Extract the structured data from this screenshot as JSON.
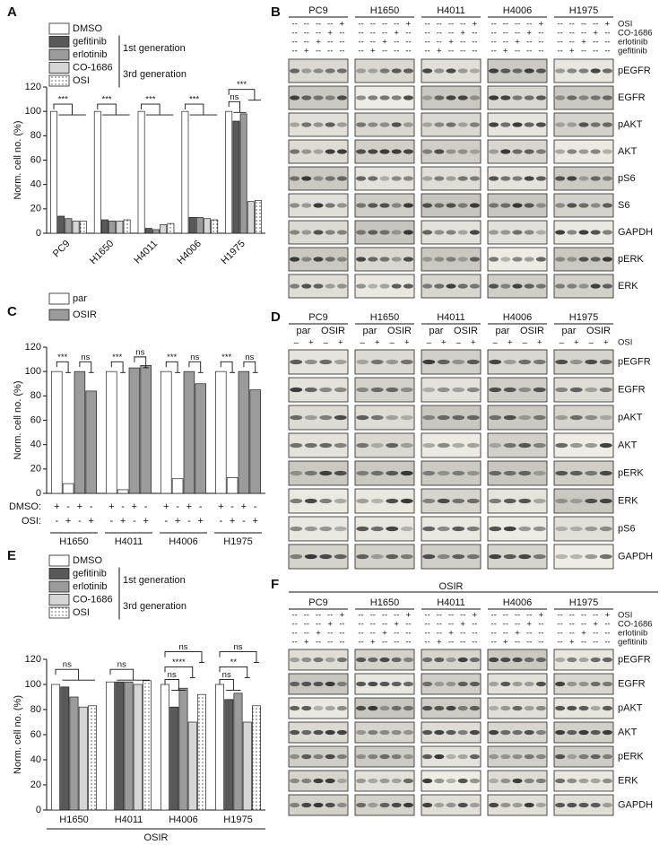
{
  "chart_data": [
    {
      "type": "bar",
      "label": "A",
      "y_label": "Norm. cell no. (%)",
      "categories": [
        "PC9",
        "H1650",
        "H4011",
        "H4006",
        "H1975"
      ],
      "rotated_labels": true,
      "series": [
        {
          "name": "DMSO",
          "color": "#ffffff",
          "values": [
            100,
            100,
            100,
            100,
            100
          ]
        },
        {
          "name": "gefitinib",
          "color": "#595959",
          "values": [
            14,
            11,
            4,
            13,
            92
          ]
        },
        {
          "name": "erlotinib",
          "color": "#9b9b9b",
          "values": [
            12,
            10,
            3,
            13,
            98
          ]
        },
        {
          "name": "CO-1686",
          "color": "#d6d6d6",
          "values": [
            10,
            10,
            7,
            12,
            26
          ]
        },
        {
          "name": "OSI",
          "color": "#ffffff",
          "pattern": "dots",
          "values": [
            10,
            11,
            8,
            11,
            27
          ]
        }
      ],
      "legend_groups": [
        "1st generation",
        "3rd generation"
      ],
      "annotations": [
        "***",
        "***",
        "***",
        "***",
        "ns",
        "***"
      ],
      "ylim": [
        0,
        120
      ],
      "yticks": [
        0,
        20,
        40,
        60,
        80,
        100,
        120
      ]
    },
    {
      "type": "bar",
      "label": "C",
      "y_label": "Norm. cell no. (%)",
      "categories": [
        "H1650",
        "H4011",
        "H4006",
        "H1975"
      ],
      "series": [
        {
          "name": "par",
          "color": "#ffffff",
          "values": [
            [
              100,
              8
            ],
            [
              100,
              3
            ],
            [
              100,
              12
            ],
            [
              100,
              13
            ]
          ]
        },
        {
          "name": "OSIR",
          "color": "#9b9b9b",
          "values": [
            [
              100,
              84
            ],
            [
              103,
              105
            ],
            [
              100,
              90
            ],
            [
              100,
              85
            ]
          ]
        }
      ],
      "conditions": [
        {
          "label": "DMSO:",
          "signs": [
            "+",
            "-",
            "+",
            "-"
          ]
        },
        {
          "label": "OSI:",
          "signs": [
            "-",
            "+",
            "-",
            "+"
          ]
        }
      ],
      "annotations": [
        "***",
        "ns",
        "***",
        "ns",
        "***",
        "ns",
        "***",
        "ns"
      ],
      "ylim": [
        0,
        120
      ],
      "yticks": [
        0,
        20,
        40,
        60,
        80,
        100,
        120
      ]
    },
    {
      "type": "bar",
      "label": "E",
      "y_label": "Norm. cell no. (%)",
      "categories": [
        "H1650",
        "H4011",
        "H4006",
        "H1975"
      ],
      "x_label": "OSIR",
      "series": [
        {
          "name": "DMSO",
          "color": "#ffffff",
          "values": [
            100,
            102,
            100,
            100
          ]
        },
        {
          "name": "gefitinib",
          "color": "#595959",
          "values": [
            98,
            102,
            82,
            88
          ]
        },
        {
          "name": "erlotinib",
          "color": "#9b9b9b",
          "values": [
            90,
            102,
            97,
            93
          ]
        },
        {
          "name": "CO-1686",
          "color": "#d6d6d6",
          "values": [
            82,
            100,
            70,
            70
          ]
        },
        {
          "name": "OSI",
          "color": "#ffffff",
          "pattern": "dots",
          "values": [
            83,
            103,
            92,
            83
          ]
        }
      ],
      "legend_groups": [
        "1st generation",
        "3rd generation"
      ],
      "annotations": [
        "ns",
        "ns",
        "ns",
        "****",
        "ns",
        "ns",
        "**",
        "ns"
      ],
      "ylim": [
        0,
        120
      ],
      "yticks": [
        0,
        20,
        40,
        60,
        80,
        100,
        120
      ]
    }
  ],
  "blots": [
    {
      "label": "B",
      "cell_lines": [
        "PC9",
        "H1650",
        "H4011",
        "H4006",
        "H1975"
      ],
      "treatments": [
        "OSI",
        "CO-1686",
        "erlotinib",
        "gefitinib"
      ],
      "signs": [
        [
          "--",
          "--",
          "--",
          "--",
          "+"
        ],
        [
          "--",
          "--",
          "--",
          "+",
          "--"
        ],
        [
          "--",
          "--",
          "+",
          "--",
          "--"
        ],
        [
          "--",
          "+",
          "--",
          "--",
          "--"
        ]
      ],
      "proteins": [
        "pEGFR",
        "EGFR",
        "pAKT",
        "AKT",
        "pS6",
        "S6",
        "GAPDH",
        "pERK",
        "ERK"
      ]
    },
    {
      "label": "D",
      "cell_lines": [
        "PC9",
        "H1650",
        "H4011",
        "H4006",
        "H1975"
      ],
      "subgroups": [
        "par",
        "OSIR"
      ],
      "treatments": [
        "OSI"
      ],
      "signs": [
        [
          "–",
          "+",
          "–",
          "+"
        ]
      ],
      "proteins": [
        "pEGFR",
        "EGFR",
        "pAKT",
        "AKT",
        "pERK",
        "ERK",
        "pS6",
        "GAPDH"
      ]
    },
    {
      "label": "F",
      "title": "OSIR",
      "cell_lines": [
        "PC9",
        "H1650",
        "H4011",
        "H4006",
        "H1975"
      ],
      "treatments": [
        "OSI",
        "CO-1686",
        "erlotinib",
        "gefitinib"
      ],
      "signs": [
        [
          "--",
          "--",
          "--",
          "--",
          "+"
        ],
        [
          "--",
          "--",
          "--",
          "+",
          "--"
        ],
        [
          "--",
          "--",
          "+",
          "--",
          "--"
        ],
        [
          "--",
          "+",
          "--",
          "--",
          "--"
        ]
      ],
      "proteins": [
        "pEGFR",
        "EGFR",
        "pAKT",
        "AKT",
        "pERK",
        "ERK",
        "GAPDH"
      ]
    }
  ]
}
